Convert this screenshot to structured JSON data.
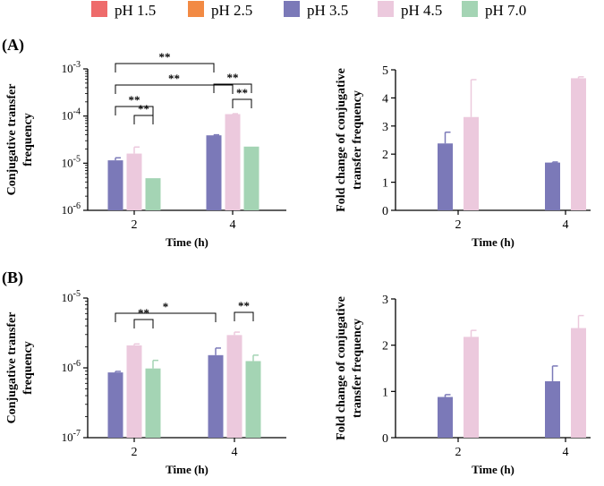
{
  "legend": [
    {
      "label": "pH 1.5",
      "color": "#ee6b6b"
    },
    {
      "label": "pH 2.5",
      "color": "#f28a44"
    },
    {
      "label": "pH 3.5",
      "color": "#7b79b8"
    },
    {
      "label": "pH 4.5",
      "color": "#ecc9dd"
    },
    {
      "label": "pH 7.0",
      "color": "#a4d4b4"
    }
  ],
  "panels": [
    {
      "label": "(A)"
    },
    {
      "label": "(B)"
    }
  ],
  "chart_data": [
    {
      "id": "A-left",
      "type": "bar",
      "panel": "A",
      "yscale": "log",
      "ylim": [
        1e-06,
        0.001
      ],
      "yticks": [
        "10-6",
        "10-5",
        "10-4",
        "10-3"
      ],
      "ylabel": [
        "Conjugative transfer",
        "frequency"
      ],
      "xlabel": "Time (h)",
      "categories": [
        "2",
        "4"
      ],
      "series": [
        {
          "name": "pH 3.5",
          "values": [
            1.15e-05,
            3.9e-05
          ],
          "errors": [
            1.3e-05,
            4e-05
          ]
        },
        {
          "name": "pH 4.5",
          "values": [
            1.6e-05,
            0.00011
          ],
          "errors": [
            2.2e-05,
            0.000112
          ]
        },
        {
          "name": "pH 7.0",
          "values": [
            4.8e-06,
            2.25e-05
          ],
          "errors": [
            4.8e-06,
            2.25e-05
          ]
        }
      ],
      "brackets": [
        {
          "from": [
            0,
            0
          ],
          "to": [
            1,
            0
          ],
          "label": "**"
        },
        {
          "from": [
            0,
            0
          ],
          "to": [
            1,
            1
          ],
          "label": "**"
        },
        {
          "from": [
            0,
            0
          ],
          "to": [
            0,
            2
          ],
          "label": "**"
        },
        {
          "from": [
            0,
            1
          ],
          "to": [
            0,
            2
          ],
          "label": "**"
        },
        {
          "from": [
            1,
            0
          ],
          "to": [
            1,
            2
          ],
          "label": "**"
        },
        {
          "from": [
            1,
            1
          ],
          "to": [
            1,
            2
          ],
          "label": "**"
        }
      ]
    },
    {
      "id": "A-right",
      "type": "bar",
      "panel": "A",
      "yscale": "linear",
      "ylim": [
        0,
        5
      ],
      "yticks": [
        "0",
        "1",
        "2",
        "3",
        "4",
        "5"
      ],
      "ylabel": [
        "Fold change of conjugative",
        "transfer frequency"
      ],
      "xlabel": "Time (h)",
      "categories": [
        "2",
        "4"
      ],
      "series": [
        {
          "name": "pH 3.5",
          "values": [
            2.38,
            1.7
          ],
          "errors": [
            2.78,
            1.72
          ]
        },
        {
          "name": "pH 4.5",
          "values": [
            3.32,
            4.7
          ],
          "errors": [
            4.65,
            4.75
          ]
        }
      ]
    },
    {
      "id": "B-left",
      "type": "bar",
      "panel": "B",
      "yscale": "log",
      "ylim": [
        1e-07,
        1e-05
      ],
      "yticks": [
        "10-7",
        "10-6",
        "10-5"
      ],
      "ylabel": [
        "Conjugative transfer",
        "frequency"
      ],
      "xlabel": "Time (h)",
      "categories": [
        "2",
        "4"
      ],
      "series": [
        {
          "name": "pH 3.5",
          "values": [
            8.6e-07,
            1.52e-06
          ],
          "errors": [
            8.9e-07,
            1.92e-06
          ]
        },
        {
          "name": "pH 4.5",
          "values": [
            2.1e-06,
            2.95e-06
          ],
          "errors": [
            2.2e-06,
            3.25e-06
          ]
        },
        {
          "name": "pH 7.0",
          "values": [
            9.8e-07,
            1.25e-06
          ],
          "errors": [
            1.28e-06,
            1.52e-06
          ]
        }
      ],
      "brackets": [
        {
          "from": [
            0,
            0
          ],
          "to": [
            1,
            0
          ],
          "label": "*"
        },
        {
          "from": [
            0,
            1
          ],
          "to": [
            0,
            2
          ],
          "label": "**"
        },
        {
          "from": [
            1,
            1
          ],
          "to": [
            1,
            2
          ],
          "label": "**"
        }
      ]
    },
    {
      "id": "B-right",
      "type": "bar",
      "panel": "B",
      "yscale": "linear",
      "ylim": [
        0,
        3
      ],
      "yticks": [
        "0",
        "1",
        "2",
        "3"
      ],
      "ylabel": [
        "Fold change of conjugative",
        "transfer frequency"
      ],
      "xlabel": "Time (h)",
      "categories": [
        "2",
        "4"
      ],
      "series": [
        {
          "name": "pH 3.5",
          "values": [
            0.88,
            1.22
          ],
          "errors": [
            0.93,
            1.55
          ]
        },
        {
          "name": "pH 4.5",
          "values": [
            2.18,
            2.37
          ],
          "errors": [
            2.32,
            2.64
          ]
        }
      ]
    }
  ]
}
